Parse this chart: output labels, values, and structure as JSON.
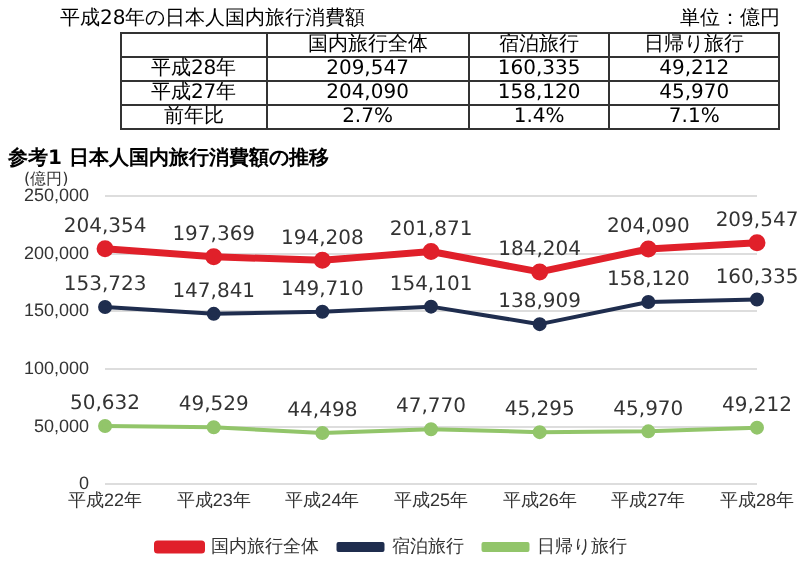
{
  "chart_data": {
    "type": "line",
    "title": "参考1 日本人国内旅行消費額の推移",
    "ylabel": "(億円)",
    "categories": [
      "平成22年",
      "平成23年",
      "平成24年",
      "平成25年",
      "平成26年",
      "平成27年",
      "平成28年"
    ],
    "series": [
      {
        "name": "国内旅行全体",
        "color": "#e0202a",
        "values": [
          204354,
          197369,
          194208,
          201871,
          184204,
          204090,
          209547
        ],
        "value_labels": [
          "204,354",
          "197,369",
          "194,208",
          "201,871",
          "184,204",
          "204,090",
          "209,547"
        ]
      },
      {
        "name": "宿泊旅行",
        "color": "#1f2d4e",
        "values": [
          153723,
          147841,
          149710,
          154101,
          138909,
          158120,
          160335
        ],
        "value_labels": [
          "153,723",
          "147,841",
          "149,710",
          "154,101",
          "138,909",
          "158,120",
          "160,335"
        ]
      },
      {
        "name": "日帰り旅行",
        "color": "#92c56a",
        "values": [
          50632,
          49529,
          44498,
          47770,
          45295,
          45970,
          49212
        ],
        "value_labels": [
          "50,632",
          "49,529",
          "44,498",
          "47,770",
          "45,295",
          "45,970",
          "49,212"
        ]
      }
    ],
    "ylim": [
      0,
      250000
    ],
    "yticks": [
      0,
      {
        "value": 50000,
        "label": "50,000"
      },
      {
        "value": 100000,
        "label": "100,000"
      },
      {
        "value": 150000,
        "label": "150,000"
      },
      {
        "value": 200000,
        "label": "200,000"
      },
      {
        "value": 250000,
        "label": "250,000"
      }
    ],
    "grid": "y",
    "legend": "bottom",
    "marker": "circle",
    "line_style": "solid",
    "annotations": [
      "平成28年の日本人国内旅行消費額",
      "単位：億円",
      "国内旅行全体",
      "宿泊旅行",
      "日帰り旅行",
      "平成28年",
      "209,547",
      "160,335",
      "49,212",
      "平成27年",
      "204,090",
      "158,120",
      "45,970",
      "前年比",
      "2.7%",
      "1.4%",
      "7.1%"
    ]
  }
}
